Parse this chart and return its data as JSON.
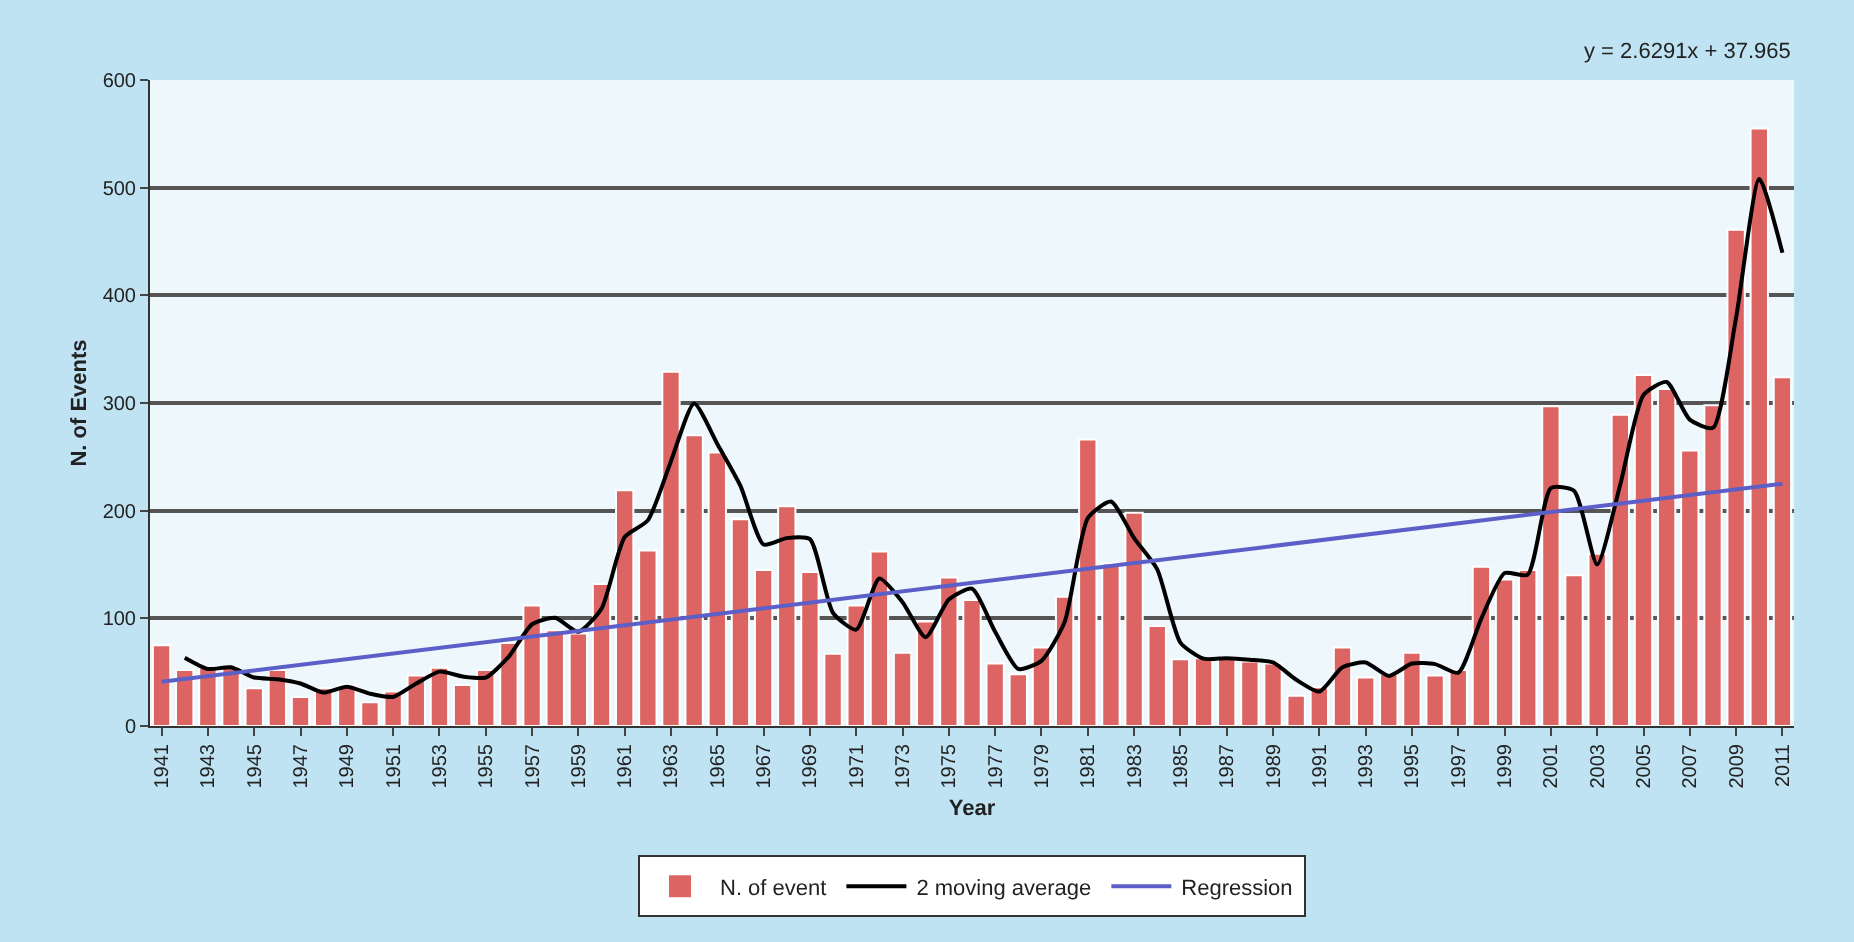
{
  "chart_data": {
    "type": "bar",
    "xlabel": "Year",
    "ylabel": "N. of Events",
    "x": [
      1941,
      1942,
      1943,
      1944,
      1945,
      1946,
      1947,
      1948,
      1949,
      1950,
      1951,
      1952,
      1953,
      1954,
      1955,
      1956,
      1957,
      1958,
      1959,
      1960,
      1961,
      1962,
      1963,
      1964,
      1965,
      1966,
      1967,
      1968,
      1969,
      1970,
      1971,
      1972,
      1973,
      1974,
      1975,
      1976,
      1977,
      1978,
      1979,
      1980,
      1981,
      1982,
      1983,
      1984,
      1985,
      1986,
      1987,
      1988,
      1989,
      1990,
      1991,
      1992,
      1993,
      1994,
      1995,
      1996,
      1997,
      1998,
      1999,
      2000,
      2001,
      2002,
      2003,
      2004,
      2005,
      2006,
      2007,
      2008,
      2009,
      2010,
      2011
    ],
    "series": [
      {
        "name": "N. of event",
        "color": "#dc6563",
        "values": [
          75,
          52,
          54,
          55,
          35,
          52,
          27,
          35,
          38,
          22,
          32,
          47,
          54,
          38,
          52,
          77,
          112,
          89,
          86,
          132,
          219,
          163,
          329,
          270,
          254,
          192,
          145,
          204,
          143,
          67,
          112,
          162,
          68,
          97,
          138,
          117,
          58,
          48,
          73,
          120,
          266,
          151,
          198,
          93,
          62,
          63,
          63,
          60,
          58,
          28,
          36,
          73,
          45,
          48,
          68,
          47,
          52,
          148,
          136,
          145,
          297,
          140,
          160,
          289,
          326,
          313,
          256,
          298,
          461,
          555,
          324
        ]
      },
      {
        "name": "2 moving average",
        "type": "line",
        "color": "#000000",
        "x": [
          1942,
          1943,
          1944,
          1945,
          1946,
          1947,
          1948,
          1949,
          1950,
          1951,
          1952,
          1953,
          1954,
          1955,
          1956,
          1957,
          1958,
          1959,
          1960,
          1961,
          1962,
          1963,
          1964,
          1965,
          1966,
          1967,
          1968,
          1969,
          1970,
          1971,
          1972,
          1973,
          1974,
          1975,
          1976,
          1977,
          1978,
          1979,
          1980,
          1981,
          1982,
          1983,
          1984,
          1985,
          1986,
          1987,
          1988,
          1989,
          1990,
          1991,
          1992,
          1993,
          1994,
          1995,
          1996,
          1997,
          1998,
          1999,
          2000,
          2001,
          2002,
          2003,
          2004,
          2005,
          2006,
          2007,
          2008,
          2009,
          2010,
          2011
        ],
        "values": [
          63.5,
          53,
          54.5,
          45,
          43.5,
          39.5,
          31,
          36.5,
          30,
          27,
          39.5,
          50.5,
          46,
          45,
          64.5,
          94.5,
          100.5,
          87.5,
          109,
          175.5,
          191,
          246,
          299.5,
          262,
          223,
          168.5,
          174.5,
          173.5,
          105,
          89.5,
          137,
          115,
          82.5,
          117.5,
          127.5,
          87.5,
          53,
          60.5,
          96.5,
          193,
          208.5,
          174.5,
          145.5,
          77.5,
          62.5,
          63,
          61.5,
          59,
          43,
          32,
          54.5,
          59,
          46.5,
          58,
          57.5,
          49.5,
          100,
          142,
          140.5,
          221,
          218.5,
          150,
          224.5,
          307.5,
          319.5,
          284.5,
          277,
          379.5,
          508,
          439.5
        ]
      },
      {
        "name": "Regression",
        "type": "line",
        "color": "#5b5fc7",
        "x": [
          1941,
          2011
        ],
        "values": [
          41,
          225
        ]
      }
    ],
    "annotations": [
      "y = 2.6291x + 37.965"
    ],
    "xlim": [
      1940.5,
      2011.5
    ],
    "xticks": [
      1941,
      1943,
      1945,
      1947,
      1949,
      1951,
      1953,
      1955,
      1957,
      1959,
      1961,
      1963,
      1965,
      1967,
      1969,
      1971,
      1973,
      1975,
      1977,
      1979,
      1981,
      1983,
      1985,
      1987,
      1989,
      1991,
      1993,
      1995,
      1997,
      1999,
      2001,
      2003,
      2005,
      2007,
      2009,
      2011
    ],
    "ylim": [
      0,
      600
    ],
    "yticks": [
      0,
      100,
      200,
      300,
      400,
      500,
      600
    ],
    "grid": "y",
    "legend": "bottom",
    "marker": "none",
    "line_style": "solid"
  }
}
